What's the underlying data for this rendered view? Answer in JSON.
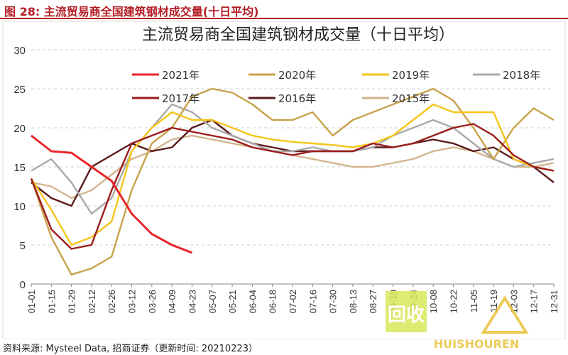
{
  "figure_label": "图 28: 主流贸易商全国建筑钢材成交量(十日平均)",
  "source": "资料来源: Mysteel Data, 招商证券（更新时间: 20210223）",
  "watermark": {
    "icon_text": "回收",
    "text": "HUISHOUREN"
  },
  "chart_data": {
    "type": "line",
    "title": "主流贸易商全国建筑钢材成交量（十日平均）",
    "xlabel": "",
    "ylabel": "",
    "ylim": [
      0,
      30
    ],
    "yticks": [
      0,
      5,
      10,
      15,
      20,
      25,
      30
    ],
    "x_ticks": [
      "01-01",
      "01-15",
      "01-29",
      "02-12",
      "02-26",
      "03-12",
      "03-26",
      "04-09",
      "04-23",
      "05-07",
      "05-21",
      "06-04",
      "06-18",
      "07-02",
      "07-16",
      "07-30",
      "08-13",
      "08-27",
      "09-10",
      "09-24",
      "10-08",
      "10-22",
      "11-05",
      "11-19",
      "12-03",
      "12-17",
      "12-31"
    ],
    "grid": "horizontal-dashed",
    "legend_position": "top",
    "series": [
      {
        "name": "2021年",
        "color": "#e8262a",
        "x": [
          0,
          1,
          2,
          3,
          4,
          5,
          6,
          7,
          8
        ],
        "y": [
          19,
          17,
          16.8,
          15,
          13.2,
          9,
          6.4,
          5,
          4
        ]
      },
      {
        "name": "2020年",
        "color": "#c8a24b",
        "x": [
          0,
          1,
          2,
          3,
          4,
          5,
          6,
          7,
          8,
          9,
          10,
          11,
          12,
          13,
          14,
          15,
          16,
          17,
          18,
          19,
          20,
          21,
          22,
          23,
          24,
          25,
          26
        ],
        "y": [
          13.5,
          6,
          1.2,
          2,
          3.5,
          12,
          18,
          20,
          24,
          25,
          24.5,
          23,
          21,
          21,
          22,
          19,
          21,
          22,
          23,
          24,
          25,
          23.5,
          20,
          16,
          20,
          22.5,
          21
        ]
      },
      {
        "name": "2019年",
        "color": "#f5c518",
        "x": [
          0,
          1,
          2,
          3,
          4,
          5,
          6,
          7,
          8,
          9,
          10,
          11,
          12,
          13,
          14,
          15,
          16,
          17,
          18,
          19,
          20,
          21,
          22,
          23,
          24,
          25,
          26
        ],
        "y": [
          13.5,
          9.5,
          5,
          6,
          8,
          17,
          20,
          22,
          21,
          21,
          20,
          19,
          18.5,
          18.2,
          18,
          17.8,
          17.5,
          18,
          19,
          21,
          23,
          22,
          22,
          22,
          16,
          15,
          14.5
        ]
      },
      {
        "name": "2018年",
        "color": "#a9a9a9",
        "x": [
          0,
          1,
          2,
          3,
          4,
          5,
          6,
          7,
          8,
          9,
          10,
          11,
          12,
          13,
          14,
          15,
          16,
          17,
          18,
          19,
          20,
          21,
          22,
          23,
          24,
          25,
          26
        ],
        "y": [
          14.5,
          16,
          13,
          9,
          11,
          17,
          20,
          23,
          22,
          20,
          19,
          18,
          17,
          17,
          17.5,
          17,
          17,
          17.5,
          19,
          20,
          21,
          20,
          18,
          16,
          15,
          15.5,
          16
        ]
      },
      {
        "name": "2017年",
        "color": "#9b1b1b",
        "x": [
          0,
          1,
          2,
          3,
          4,
          5,
          6,
          7,
          8,
          9,
          10,
          11,
          12,
          13,
          14,
          15,
          16,
          17,
          18,
          19,
          20,
          21,
          22,
          23,
          24,
          25,
          26
        ],
        "y": [
          13.5,
          7,
          4.5,
          5,
          12,
          18,
          19,
          20,
          19.5,
          19,
          18.5,
          17.5,
          17,
          16.5,
          17,
          17,
          17,
          18,
          17.5,
          18,
          19,
          20,
          20.5,
          19,
          16.5,
          15,
          14.5
        ]
      },
      {
        "name": "2016年",
        "color": "#5a1a1a",
        "x": [
          0,
          1,
          2,
          3,
          4,
          5,
          6,
          7,
          8,
          9,
          10,
          11,
          12,
          13,
          14,
          15,
          16,
          17,
          18,
          19,
          20,
          21,
          22,
          23,
          24,
          25,
          26
        ],
        "y": [
          13,
          11,
          10,
          15,
          16.5,
          18,
          17,
          17.5,
          20,
          21,
          19,
          18,
          17.5,
          17,
          17,
          17,
          17,
          17.5,
          17.5,
          18,
          18.5,
          18,
          17,
          17.5,
          16,
          15,
          13
        ]
      },
      {
        "name": "2015年",
        "color": "#d2b48c",
        "x": [
          0,
          1,
          2,
          3,
          4,
          5,
          6,
          7,
          8,
          9,
          10,
          11,
          12,
          13,
          14,
          15,
          16,
          17,
          18,
          19,
          20,
          21,
          22,
          23,
          24,
          25,
          26
        ],
        "y": [
          13,
          12.5,
          11,
          12,
          14,
          16,
          17,
          18.5,
          19,
          18.5,
          18,
          17.5,
          17,
          16.5,
          16,
          15.5,
          15,
          15,
          15.5,
          16,
          17,
          17.5,
          17,
          16,
          15,
          15,
          15.5
        ]
      }
    ]
  }
}
